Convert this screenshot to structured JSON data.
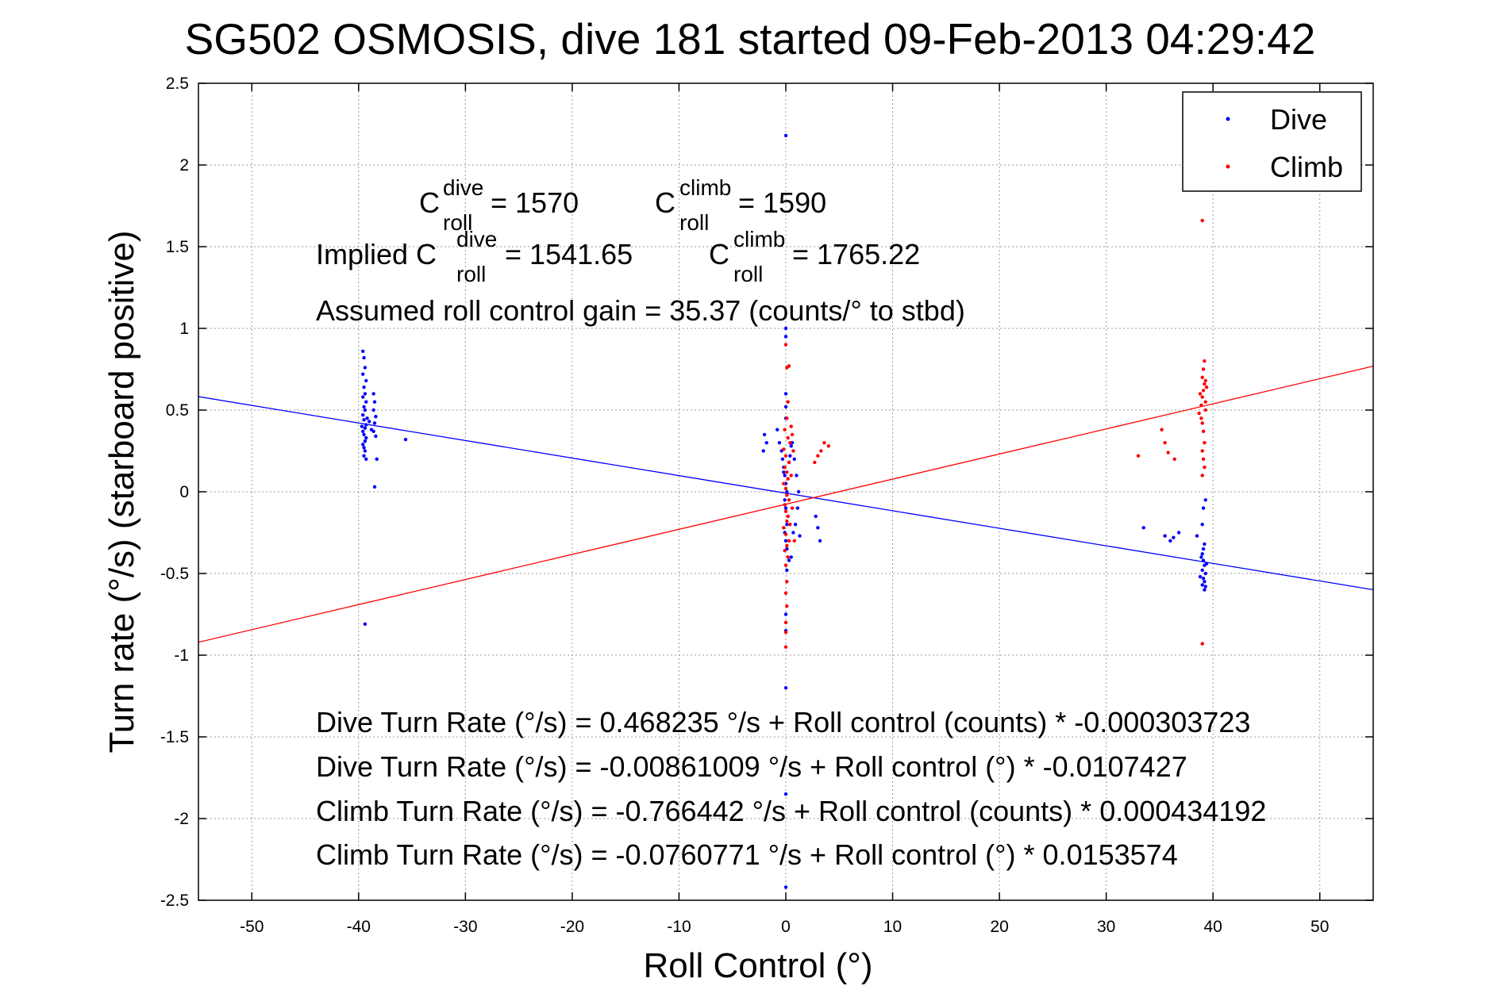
{
  "chart_data": {
    "type": "scatter",
    "title": "SG502 OSMOSIS, dive 181 started 09-Feb-2013 04:29:42",
    "xlabel": "Roll Control (°)",
    "ylabel": "Turn rate (°/s)  (starboard positive)",
    "xlim": [
      -55,
      55
    ],
    "ylim": [
      -2.5,
      2.5
    ],
    "xticks": [
      -50,
      -40,
      -30,
      -20,
      -10,
      0,
      10,
      20,
      30,
      40,
      50
    ],
    "xtick_labels": [
      "-50",
      "-40",
      "-30",
      "-20",
      "-10",
      "0",
      "10",
      "20",
      "30",
      "40",
      "50"
    ],
    "yticks": [
      -2.5,
      -2,
      -1.5,
      -1,
      -0.5,
      0,
      0.5,
      1,
      1.5,
      2,
      2.5
    ],
    "ytick_labels": [
      "-2.5",
      "-2",
      "-1.5",
      "-1",
      "-0.5",
      "0",
      "0.5",
      "1",
      "1.5",
      "2",
      "2.5"
    ],
    "grid": true,
    "legend_position": "top-right",
    "series": [
      {
        "name": "Dive",
        "color": "#0000ff",
        "marker": "dot",
        "points": [
          [
            -39.6,
            0.86
          ],
          [
            -39.5,
            0.82
          ],
          [
            -39.4,
            0.76
          ],
          [
            -39.6,
            0.72
          ],
          [
            -39.3,
            0.68
          ],
          [
            -39.5,
            0.64
          ],
          [
            -39.4,
            0.6
          ],
          [
            -39.6,
            0.58
          ],
          [
            -39.3,
            0.55
          ],
          [
            -39.5,
            0.52
          ],
          [
            -39.4,
            0.5
          ],
          [
            -39.6,
            0.47
          ],
          [
            -39.5,
            0.44
          ],
          [
            -39.3,
            0.41
          ],
          [
            -39.4,
            0.39
          ],
          [
            -39.6,
            0.37
          ],
          [
            -39.5,
            0.35
          ],
          [
            -39.3,
            0.33
          ],
          [
            -39.4,
            0.31
          ],
          [
            -39.6,
            0.29
          ],
          [
            -39.5,
            0.27
          ],
          [
            -39.4,
            0.25
          ],
          [
            -39.5,
            0.22
          ],
          [
            -39.3,
            0.2
          ],
          [
            -39.7,
            0.4
          ],
          [
            -39.2,
            0.45
          ],
          [
            -39.0,
            0.43
          ],
          [
            -38.8,
            0.38
          ],
          [
            -38.6,
            0.6
          ],
          [
            -38.5,
            0.55
          ],
          [
            -38.6,
            0.5
          ],
          [
            -38.4,
            0.46
          ],
          [
            -38.5,
            0.42
          ],
          [
            -38.6,
            0.37
          ],
          [
            -38.4,
            0.34
          ],
          [
            -38.3,
            0.2
          ],
          [
            -38.5,
            0.03
          ],
          [
            -35.6,
            0.32
          ],
          [
            -39.4,
            -0.81
          ],
          [
            -2.0,
            0.35
          ],
          [
            -1.8,
            0.3
          ],
          [
            -2.1,
            0.25
          ],
          [
            -0.8,
            0.38
          ],
          [
            -0.6,
            0.3
          ],
          [
            -0.4,
            0.25
          ],
          [
            -0.3,
            0.2
          ],
          [
            -0.2,
            0.15
          ],
          [
            -0.1,
            0.1
          ],
          [
            0.0,
            0.05
          ],
          [
            0.1,
            0.0
          ],
          [
            -0.1,
            -0.05
          ],
          [
            0.0,
            -0.1
          ],
          [
            0.2,
            -0.15
          ],
          [
            0.1,
            -0.2
          ],
          [
            -0.1,
            -0.25
          ],
          [
            0.0,
            -0.3
          ],
          [
            0.1,
            -0.35
          ],
          [
            0.2,
            -0.4
          ],
          [
            -0.2,
            0.12
          ],
          [
            0.3,
            0.18
          ],
          [
            0.4,
            0.22
          ],
          [
            0.5,
            0.28
          ],
          [
            0.6,
            0.3
          ],
          [
            0.8,
            0.2
          ],
          [
            1.0,
            0.1
          ],
          [
            1.2,
            0.0
          ],
          [
            1.1,
            -0.1
          ],
          [
            0.9,
            -0.2
          ],
          [
            0.7,
            -0.25
          ],
          [
            1.3,
            -0.27
          ],
          [
            0.5,
            -0.4
          ],
          [
            0.3,
            -0.42
          ],
          [
            0.1,
            -0.48
          ],
          [
            0.0,
            0.45
          ],
          [
            0.0,
            0.52
          ],
          [
            0.0,
            0.6
          ],
          [
            0.0,
            0.95
          ],
          [
            0.0,
            1.0
          ],
          [
            0.0,
            2.18
          ],
          [
            0.0,
            -1.2
          ],
          [
            0.0,
            -1.85
          ],
          [
            0.0,
            -2.42
          ],
          [
            0.0,
            -0.75
          ],
          [
            0.0,
            -0.85
          ],
          [
            2.8,
            -0.15
          ],
          [
            3.0,
            -0.22
          ],
          [
            3.2,
            -0.3
          ],
          [
            33.5,
            -0.22
          ],
          [
            35.5,
            -0.27
          ],
          [
            36.0,
            -0.3
          ],
          [
            36.3,
            -0.28
          ],
          [
            36.8,
            -0.25
          ],
          [
            38.5,
            -0.27
          ],
          [
            39.0,
            -0.2
          ],
          [
            39.2,
            -0.32
          ],
          [
            39.1,
            -0.1
          ],
          [
            39.3,
            -0.05
          ],
          [
            39.0,
            -0.38
          ],
          [
            39.1,
            -0.42
          ],
          [
            39.2,
            -0.45
          ],
          [
            39.0,
            -0.48
          ],
          [
            39.3,
            -0.5
          ],
          [
            39.1,
            -0.53
          ],
          [
            39.2,
            -0.55
          ],
          [
            39.0,
            -0.57
          ],
          [
            39.3,
            -0.58
          ],
          [
            39.1,
            -0.35
          ],
          [
            38.9,
            -0.4
          ],
          [
            39.4,
            -0.44
          ],
          [
            38.8,
            -0.52
          ],
          [
            39.2,
            -0.6
          ]
        ]
      },
      {
        "name": "Climb",
        "color": "#ff0000",
        "marker": "dot",
        "points": [
          [
            0.0,
            0.9
          ],
          [
            0.1,
            0.76
          ],
          [
            0.3,
            0.77
          ],
          [
            0.2,
            0.55
          ],
          [
            0.1,
            0.45
          ],
          [
            -0.1,
            0.38
          ],
          [
            0.2,
            0.33
          ],
          [
            0.4,
            0.3
          ],
          [
            -0.2,
            0.26
          ],
          [
            0.0,
            0.22
          ],
          [
            0.3,
            0.18
          ],
          [
            -0.1,
            0.15
          ],
          [
            0.1,
            0.12
          ],
          [
            0.2,
            0.08
          ],
          [
            -0.2,
            0.05
          ],
          [
            0.0,
            0.02
          ],
          [
            0.1,
            -0.02
          ],
          [
            0.3,
            -0.05
          ],
          [
            -0.1,
            -0.08
          ],
          [
            0.0,
            -0.12
          ],
          [
            0.2,
            -0.15
          ],
          [
            0.1,
            -0.18
          ],
          [
            -0.2,
            -0.22
          ],
          [
            0.0,
            -0.26
          ],
          [
            0.3,
            -0.3
          ],
          [
            0.1,
            -0.33
          ],
          [
            -0.1,
            -0.36
          ],
          [
            0.2,
            -0.4
          ],
          [
            0.0,
            -0.45
          ],
          [
            0.1,
            -0.55
          ],
          [
            0.0,
            -0.62
          ],
          [
            0.1,
            -0.7
          ],
          [
            0.0,
            -0.8
          ],
          [
            0.0,
            -0.86
          ],
          [
            0.0,
            -0.95
          ],
          [
            0.5,
            0.4
          ],
          [
            0.6,
            0.35
          ],
          [
            0.7,
            0.25
          ],
          [
            0.5,
            0.1
          ],
          [
            0.6,
            -0.1
          ],
          [
            0.4,
            -0.2
          ],
          [
            0.8,
            -0.3
          ],
          [
            2.7,
            0.18
          ],
          [
            3.0,
            0.22
          ],
          [
            3.3,
            0.25
          ],
          [
            3.6,
            0.3
          ],
          [
            4.0,
            0.28
          ],
          [
            33.0,
            0.22
          ],
          [
            35.2,
            0.38
          ],
          [
            35.5,
            0.3
          ],
          [
            35.8,
            0.24
          ],
          [
            36.4,
            0.2
          ],
          [
            38.7,
            0.48
          ],
          [
            38.9,
            0.53
          ],
          [
            39.0,
            0.58
          ],
          [
            39.1,
            0.62
          ],
          [
            39.2,
            0.66
          ],
          [
            39.0,
            0.7
          ],
          [
            39.1,
            0.75
          ],
          [
            39.2,
            0.8
          ],
          [
            38.9,
            0.45
          ],
          [
            39.3,
            0.5
          ],
          [
            39.0,
            0.42
          ],
          [
            39.1,
            0.37
          ],
          [
            39.2,
            0.3
          ],
          [
            39.0,
            0.25
          ],
          [
            39.1,
            0.2
          ],
          [
            39.2,
            0.15
          ],
          [
            39.0,
            0.1
          ],
          [
            39.3,
            0.55
          ],
          [
            38.8,
            0.6
          ],
          [
            39.4,
            0.64
          ],
          [
            39.3,
            0.68
          ],
          [
            39.0,
            1.66
          ],
          [
            39.0,
            -0.93
          ]
        ]
      }
    ],
    "fit_lines": [
      {
        "series": "Dive",
        "color": "#0000ff",
        "intercept": -0.00861009,
        "slope": -0.0107427
      },
      {
        "series": "Climb",
        "color": "#ff0000",
        "intercept": -0.0760771,
        "slope": 0.0153574
      }
    ],
    "annotations": {
      "c_dive_prefix": "C",
      "c_dive_sup": "dive",
      "c_dive_sub": "roll",
      "c_dive_value": " = 1570",
      "c_climb_prefix": "C",
      "c_climb_sup": "climb",
      "c_climb_sub": "roll",
      "c_climb_value": " = 1590",
      "implied_dive_prefix": "Implied C",
      "implied_dive_sup": "dive",
      "implied_dive_sub": "roll",
      "implied_dive_value": " = 1541.65",
      "implied_climb_prefix": "C",
      "implied_climb_sup": "climb",
      "implied_climb_sub": "roll",
      "implied_climb_value": " = 1765.22",
      "gain": "Assumed roll control gain = 35.37 (counts/° to stbd)",
      "eq1": "Dive Turn Rate (°/s) = 0.468235 °/s + Roll control (counts) * -0.000303723",
      "eq2": "Dive Turn Rate (°/s) = -0.00861009 °/s + Roll control (°) * -0.0107427",
      "eq3": "Climb Turn Rate (°/s) = -0.766442 °/s + Roll control (counts) * 0.000434192",
      "eq4": "Climb Turn Rate (°/s) = -0.0760771 °/s + Roll control (°) * 0.0153574"
    }
  }
}
